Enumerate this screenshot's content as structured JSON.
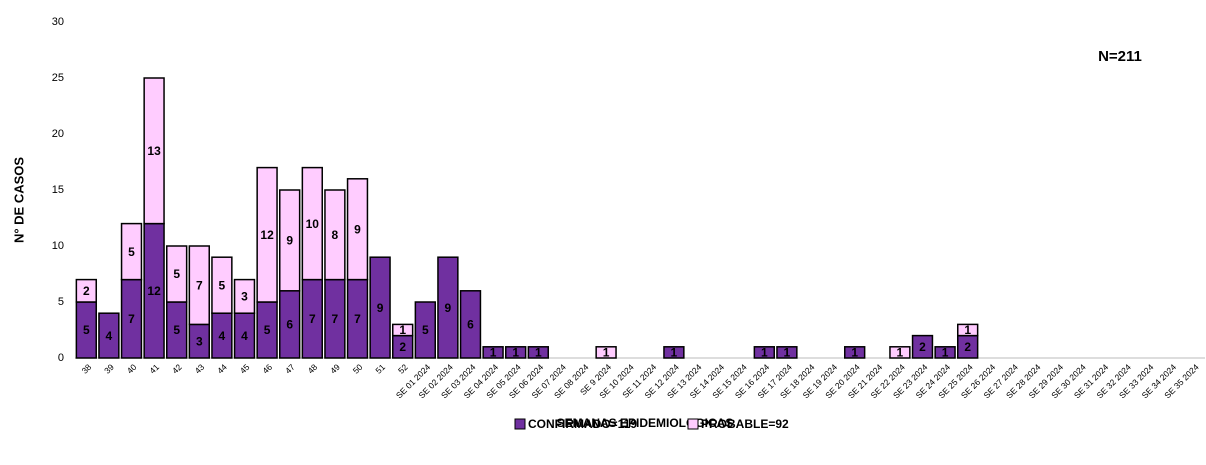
{
  "chart_data": {
    "type": "stacked-bar",
    "annotation": "N=211",
    "y_label": "N° DE CASOS",
    "x_label": "SEMANAS EPIDEMIOLOGICAS",
    "categories": [
      "38",
      "39",
      "40",
      "41",
      "42",
      "43",
      "44",
      "45",
      "46",
      "47",
      "48",
      "49",
      "50",
      "51",
      "52",
      "SE 01 2024",
      "SE 02 2024",
      "SE 03 2024",
      "SE 04 2024",
      "SE 05 2024",
      "SE 06 2024",
      "SE 07 2024",
      "SE 08 2024",
      "SE 9 2024",
      "SE 10 2024",
      "SE 11 2024",
      "SE 12 2024",
      "SE 13 2024",
      "SE 14 2024",
      "SE 15 2024",
      "SE 16 2024",
      "SE 17 2024",
      "SE 18 2024",
      "SE 19 2024",
      "SE 20 2024",
      "SE 21 2024",
      "SE 22 2024",
      "SE 23 2024",
      "SE 24 2024",
      "SE 25 2024",
      "SE 26 2024",
      "SE 27 2024",
      "SE 28 2024",
      "SE 29 2024",
      "SE 30 2024",
      "SE 31 2024",
      "SE 32 2024",
      "SE 33 2024",
      "SE 34 2024",
      "SE 35 2024"
    ],
    "series": [
      {
        "name": "CONFIRMADO=119",
        "color": "#7030a0",
        "values": [
          5,
          4,
          7,
          12,
          5,
          3,
          4,
          4,
          5,
          6,
          7,
          7,
          7,
          9,
          2,
          5,
          9,
          6,
          1,
          1,
          1,
          null,
          null,
          null,
          null,
          null,
          1,
          null,
          null,
          null,
          1,
          1,
          null,
          null,
          1,
          null,
          null,
          2,
          1,
          2,
          null,
          null,
          null,
          null,
          null,
          null,
          null,
          null,
          null,
          null
        ]
      },
      {
        "name": "PROBABLE=92",
        "color": "#ffccff",
        "values": [
          2,
          null,
          5,
          13,
          5,
          7,
          5,
          3,
          12,
          9,
          10,
          8,
          9,
          null,
          1,
          null,
          null,
          null,
          null,
          null,
          null,
          null,
          null,
          1,
          null,
          null,
          null,
          null,
          null,
          null,
          null,
          null,
          null,
          null,
          null,
          null,
          1,
          null,
          null,
          1,
          null,
          null,
          null,
          null,
          null,
          null,
          null,
          null,
          null,
          null
        ]
      }
    ],
    "ylim": [
      0,
      30
    ],
    "yticks": [
      0,
      5,
      10,
      15,
      20,
      25,
      30
    ]
  }
}
